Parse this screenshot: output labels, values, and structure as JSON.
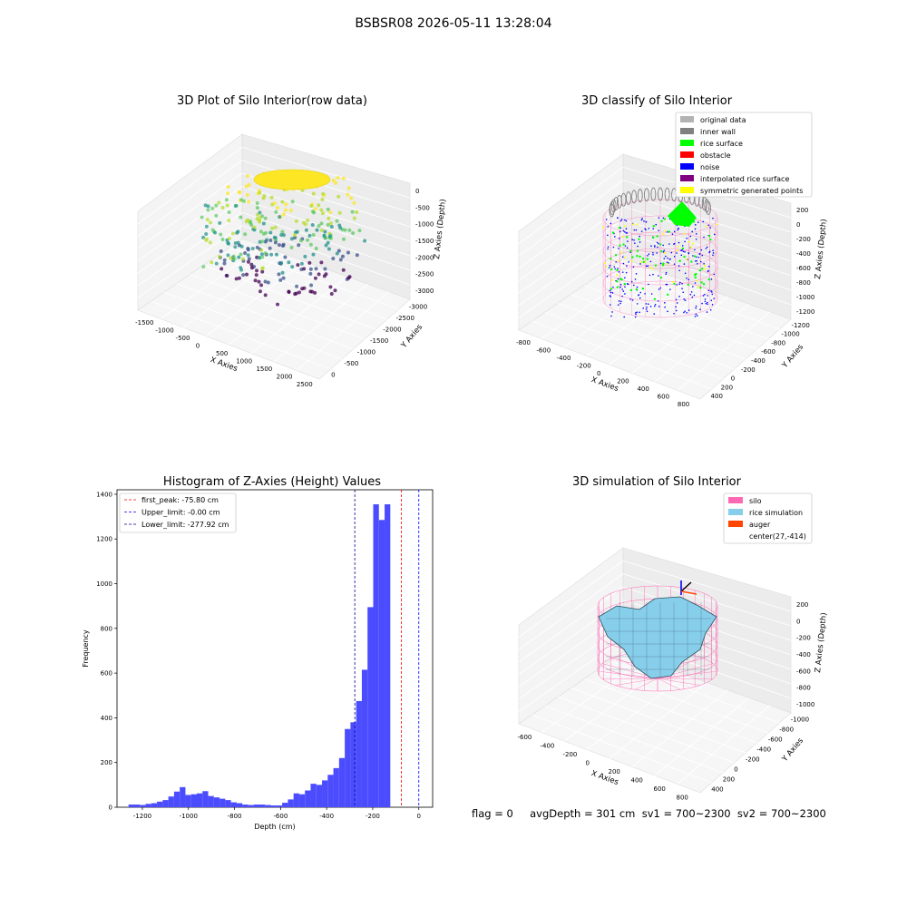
{
  "figure": {
    "title": "BSBSR08 2026-05-11 13:28:04",
    "footer": "flag = 0     avgDepth = 301 cm  sv1 = 700~2300  sv2 = 700~2300"
  },
  "colors": {
    "original_data": "#b3b3b3",
    "inner_wall": "#808080",
    "rice_surface": "#00ff00",
    "obstacle": "#ff0000",
    "noise": "#0000ff",
    "interpolated": "#800080",
    "symmetric": "#ffff00",
    "silo": "#ff69b4",
    "rice_sim": "#87ceeb",
    "auger": "#ff4500",
    "hist_bar": "#4c4cff"
  },
  "chart_data": [
    {
      "type": "scatter3d",
      "title": "3D Plot of Silo Interior(row data)",
      "xlabel": "X Axies",
      "ylabel": "Y Axies",
      "zlabel": "Z Axies (Depth)",
      "xticks": [
        "-1500",
        "-1000",
        "-500",
        "0",
        "500",
        "1000",
        "1500",
        "2000",
        "2500"
      ],
      "yticks": [
        "0",
        "-500",
        "-1000",
        "-1500",
        "-2000",
        "-2500",
        "-3000"
      ],
      "zticks": [
        "0",
        "-500",
        "-1000",
        "-1500",
        "-2000",
        "-2500",
        "-3000"
      ]
    },
    {
      "type": "scatter3d",
      "title": "3D classify of Silo Interior",
      "xlabel": "X Axies",
      "ylabel": "Y Axies",
      "zlabel": "Z Axies (Depth)",
      "xticks": [
        "-800",
        "-600",
        "-400",
        "-200",
        "0",
        "200",
        "400",
        "600",
        "800"
      ],
      "yticks": [
        "400",
        "200",
        "0",
        "-200",
        "-400",
        "-600",
        "-800",
        "-1000",
        "-1200"
      ],
      "zticks": [
        "200",
        "0",
        "-200",
        "-400",
        "-600",
        "-800",
        "-1000",
        "-1200"
      ],
      "legend": [
        {
          "label": "original data",
          "color": "#b3b3b3"
        },
        {
          "label": "inner wall",
          "color": "#808080"
        },
        {
          "label": "rice surface",
          "color": "#00ff00"
        },
        {
          "label": "obstacle",
          "color": "#ff0000"
        },
        {
          "label": "noise",
          "color": "#0000ff"
        },
        {
          "label": "interpolated rice surface",
          "color": "#800080"
        },
        {
          "label": "symmetric generated points",
          "color": "#ffff00"
        }
      ]
    },
    {
      "type": "bar",
      "title": "Histogram of Z-Axies (Height) Values",
      "xlabel": "Depth (cm)",
      "ylabel": "Frequency",
      "xlim": [
        -1310,
        60
      ],
      "ylim": [
        0,
        1420
      ],
      "xticks": [
        -1200,
        -1000,
        -800,
        -600,
        -400,
        -200,
        0
      ],
      "yticks": [
        0,
        200,
        400,
        600,
        800,
        1000,
        1200,
        1400
      ],
      "bin_width": 24.7,
      "bin_start": -1260,
      "values": [
        12,
        12,
        10,
        15,
        18,
        25,
        32,
        48,
        70,
        90,
        55,
        58,
        62,
        72,
        50,
        44,
        38,
        32,
        22,
        18,
        12,
        10,
        12,
        12,
        10,
        8,
        8,
        20,
        35,
        62,
        58,
        75,
        105,
        100,
        120,
        145,
        175,
        220,
        350,
        380,
        475,
        615,
        895,
        1355,
        1285,
        1355
      ],
      "lines": [
        {
          "label": "first_peak: -75.80 cm",
          "x": -75.8,
          "color": "#ff0000"
        },
        {
          "label": "Upper_limit: -0.00 cm",
          "x": 0,
          "color": "#0000ff"
        },
        {
          "label": "Lower_limit: -277.92 cm",
          "x": -277.92,
          "color": "#00008b"
        }
      ]
    },
    {
      "type": "surface3d",
      "title": "3D simulation of Silo Interior",
      "xlabel": "X Axies",
      "ylabel": "Y Axies",
      "zlabel": "Z Axies (Depth)",
      "xticks": [
        "-600",
        "-400",
        "-200",
        "0",
        "200",
        "400",
        "600",
        "800"
      ],
      "yticks": [
        "400",
        "200",
        "0",
        "-200",
        "-400",
        "-600",
        "-800",
        "-1000"
      ],
      "zticks": [
        "200",
        "0",
        "-200",
        "-400",
        "-600",
        "-800",
        "-1000"
      ],
      "legend": [
        {
          "label": "silo",
          "color": "#ff69b4"
        },
        {
          "label": "rice simulation",
          "color": "#87ceeb"
        },
        {
          "label": "auger",
          "color": "#ff4500"
        },
        {
          "label": "center(27,-414)",
          "color": ""
        }
      ]
    }
  ]
}
